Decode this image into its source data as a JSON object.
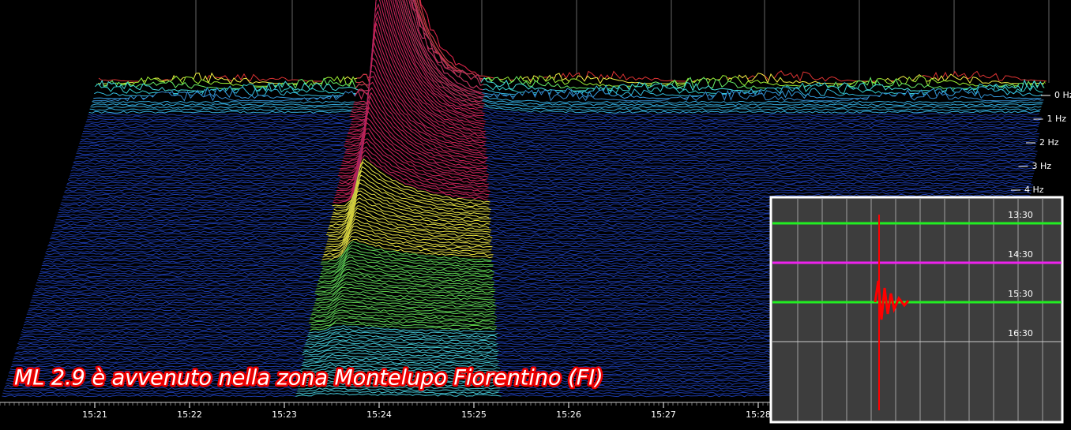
{
  "caption": "ML 2.9 è avvenuto nella zona Montelupo Fiorentino (FI)",
  "time_axis": {
    "labels": [
      "15:21",
      "15:22",
      "15:23",
      "15:24",
      "15:25",
      "15:26",
      "15:27",
      "15:28"
    ]
  },
  "frequency_axis": {
    "labels": [
      "0 Hz",
      "1 Hz",
      "2 Hz",
      "3 Hz",
      "4 Hz"
    ]
  },
  "inset": {
    "time_labels": [
      "13:30",
      "14:30",
      "15:30",
      "16:30"
    ]
  }
}
